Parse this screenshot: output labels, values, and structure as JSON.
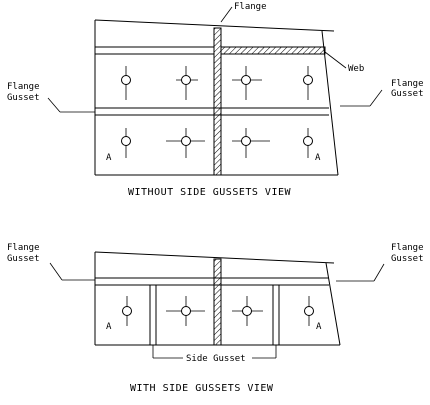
{
  "top_view": {
    "flange_label": "Flange",
    "web_label": "Web",
    "left_label_line1": "Flange",
    "left_label_line2": "Gusset",
    "right_label_line1": "Flange",
    "right_label_line2": "Gusset",
    "point_a_left": "A",
    "point_a_right": "A",
    "caption": "WITHOUT SIDE GUSSETS VIEW"
  },
  "bottom_view": {
    "left_label_line1": "Flange",
    "left_label_line2": "Gusset",
    "right_label_line1": "Flange",
    "right_label_line2": "Gusset",
    "point_a_left": "A",
    "point_a_right": "A",
    "side_gusset_label": "Side Gusset",
    "caption": "WITH SIDE GUSSETS VIEW"
  },
  "colors": {
    "line": "#000000",
    "background": "#ffffff"
  }
}
